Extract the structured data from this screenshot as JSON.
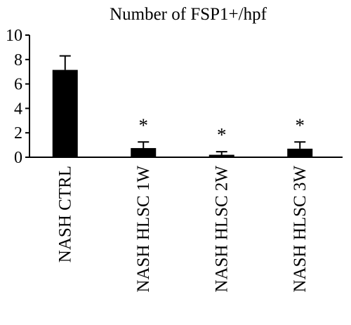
{
  "chart_data": {
    "type": "bar",
    "title": "Number of FSP1+/hpf",
    "xlabel": "",
    "ylabel": "",
    "categories": [
      "NASH CTRL",
      "NASH HLSC 1W",
      "NASH HLSC 2W",
      "NASH HLSC 3W"
    ],
    "values": [
      7.15,
      0.75,
      0.2,
      0.7
    ],
    "errors": [
      1.15,
      0.5,
      0.25,
      0.55
    ],
    "annotations": [
      "",
      "*",
      "*",
      "*"
    ],
    "ylim": [
      0,
      10
    ],
    "yticks": [
      "0",
      "2",
      "4",
      "6",
      "8",
      "10"
    ],
    "grid": false,
    "legend": "none",
    "bar_color": "#000000"
  }
}
